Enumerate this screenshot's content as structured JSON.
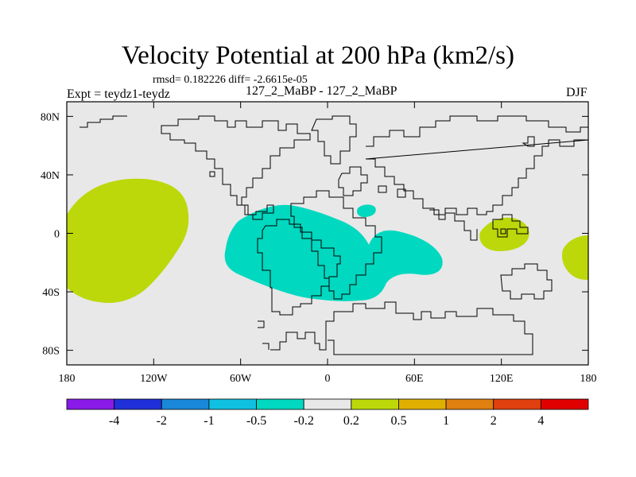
{
  "title": "Velocity Potential at 200 hPa (km2/s)",
  "stats": "rmsd= 0.182226 diff= -2.6615e-05",
  "experiment": "Expt = teydz1-teydz",
  "runs": "127_2_MaBP - 127_2_MaBP",
  "season": "DJF",
  "map": {
    "lon_range": [
      -180,
      180
    ],
    "lat_range": [
      -90,
      90
    ],
    "x_ticks": [
      {
        "lon": -180,
        "label": "180"
      },
      {
        "lon": -120,
        "label": "120W"
      },
      {
        "lon": -60,
        "label": "60W"
      },
      {
        "lon": 0,
        "label": "0"
      },
      {
        "lon": 60,
        "label": "60E"
      },
      {
        "lon": 120,
        "label": "120E"
      },
      {
        "lon": 180,
        "label": "180"
      }
    ],
    "y_ticks": [
      {
        "lat": 80,
        "label": "80N"
      },
      {
        "lat": 40,
        "label": "40N"
      },
      {
        "lat": 0,
        "label": "0"
      },
      {
        "lat": -40,
        "label": "40S"
      },
      {
        "lat": -80,
        "label": "80S"
      }
    ],
    "background_color": "#e8e8e8",
    "positive_color": "#bcd80a",
    "negative_color": "#00d8c0",
    "regions": [
      {
        "name": "positive-anomaly-central-pacific",
        "sign": "positive",
        "range": "0.2 to 0.5",
        "center": [
          -163,
          1
        ]
      },
      {
        "name": "negative-anomaly-south-america-atlantic",
        "sign": "negative",
        "range": "-0.5 to -0.2",
        "center": [
          -15,
          -8
        ]
      },
      {
        "name": "negative-anomaly-north-africa",
        "sign": "negative",
        "range": "-0.5 to -0.2",
        "center": [
          27,
          16
        ]
      },
      {
        "name": "positive-anomaly-maritime-continent",
        "sign": "positive",
        "range": "0.2 to 0.5",
        "center": [
          122,
          -1
        ]
      },
      {
        "name": "positive-anomaly-east-pacific-edge",
        "sign": "positive",
        "range": "0.2 to 0.5",
        "center": [
          175,
          -16
        ]
      }
    ]
  },
  "colorbar": {
    "colors": [
      "#8a1ae8",
      "#2030d8",
      "#1a88d8",
      "#10c0e0",
      "#00d8c0",
      "#e8e8e8",
      "#bcd80a",
      "#e0b000",
      "#e08010",
      "#e04010",
      "#e00000"
    ],
    "labels": [
      "-4",
      "-2",
      "-1",
      "-0.5",
      "-0.2",
      "0.2",
      "0.5",
      "1",
      "2",
      "4"
    ]
  }
}
